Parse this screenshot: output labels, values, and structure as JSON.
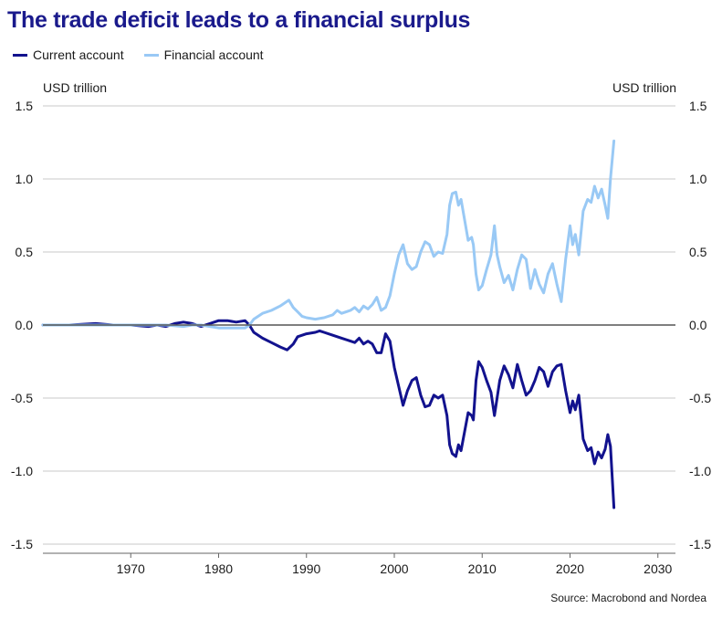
{
  "chart_data": {
    "type": "line",
    "title": "The trade deficit leads to a financial surplus",
    "ylabel_left": "USD trillion",
    "ylabel_right": "USD trillion",
    "source": "Source: Macrobond and Nordea",
    "xlim": [
      1960,
      2032
    ],
    "ylim": [
      -1.5,
      1.5
    ],
    "x_ticks": [
      1970,
      1980,
      1990,
      2000,
      2010,
      2020,
      2030
    ],
    "y_ticks": [
      1.5,
      1.0,
      0.5,
      0.0,
      -0.5,
      -1.0,
      -1.5
    ],
    "y_tick_labels": [
      "1.5",
      "1.0",
      "0.5",
      "0.0",
      "-0.5",
      "-1.0",
      "-1.5"
    ],
    "grid": "horizontal",
    "legend_placement": "top-left",
    "series": [
      {
        "name": "Current account",
        "color": "#12128e",
        "points": [
          [
            1960.0,
            0.0
          ],
          [
            1963.0,
            0.0
          ],
          [
            1966.0,
            0.01
          ],
          [
            1968.0,
            0.0
          ],
          [
            1970.0,
            0.0
          ],
          [
            1972.0,
            -0.01
          ],
          [
            1973.0,
            0.0
          ],
          [
            1974.0,
            -0.01
          ],
          [
            1975.0,
            0.01
          ],
          [
            1976.0,
            0.02
          ],
          [
            1977.0,
            0.01
          ],
          [
            1978.0,
            -0.01
          ],
          [
            1979.0,
            0.01
          ],
          [
            1980.0,
            0.03
          ],
          [
            1981.0,
            0.03
          ],
          [
            1982.0,
            0.02
          ],
          [
            1983.0,
            0.03
          ],
          [
            1983.5,
            0.0
          ],
          [
            1984.0,
            -0.05
          ],
          [
            1985.0,
            -0.09
          ],
          [
            1986.0,
            -0.12
          ],
          [
            1987.0,
            -0.15
          ],
          [
            1987.8,
            -0.17
          ],
          [
            1988.5,
            -0.13
          ],
          [
            1989.0,
            -0.08
          ],
          [
            1990.0,
            -0.06
          ],
          [
            1991.0,
            -0.05
          ],
          [
            1991.5,
            -0.04
          ],
          [
            1992.0,
            -0.05
          ],
          [
            1993.0,
            -0.07
          ],
          [
            1994.0,
            -0.09
          ],
          [
            1995.0,
            -0.11
          ],
          [
            1995.5,
            -0.12
          ],
          [
            1996.0,
            -0.09
          ],
          [
            1996.5,
            -0.13
          ],
          [
            1997.0,
            -0.11
          ],
          [
            1997.5,
            -0.13
          ],
          [
            1998.0,
            -0.19
          ],
          [
            1998.5,
            -0.19
          ],
          [
            1999.0,
            -0.06
          ],
          [
            1999.5,
            -0.11
          ],
          [
            2000.0,
            -0.29
          ],
          [
            2000.5,
            -0.42
          ],
          [
            2001.0,
            -0.55
          ],
          [
            2001.5,
            -0.45
          ],
          [
            2002.0,
            -0.38
          ],
          [
            2002.5,
            -0.36
          ],
          [
            2003.0,
            -0.48
          ],
          [
            2003.5,
            -0.56
          ],
          [
            2004.0,
            -0.55
          ],
          [
            2004.5,
            -0.48
          ],
          [
            2005.0,
            -0.5
          ],
          [
            2005.5,
            -0.48
          ],
          [
            2006.0,
            -0.62
          ],
          [
            2006.3,
            -0.82
          ],
          [
            2006.6,
            -0.88
          ],
          [
            2007.0,
            -0.9
          ],
          [
            2007.3,
            -0.82
          ],
          [
            2007.6,
            -0.86
          ],
          [
            2008.0,
            -0.73
          ],
          [
            2008.4,
            -0.6
          ],
          [
            2008.8,
            -0.62
          ],
          [
            2009.0,
            -0.65
          ],
          [
            2009.3,
            -0.38
          ],
          [
            2009.6,
            -0.25
          ],
          [
            2010.0,
            -0.29
          ],
          [
            2010.5,
            -0.38
          ],
          [
            2011.0,
            -0.46
          ],
          [
            2011.4,
            -0.62
          ],
          [
            2011.7,
            -0.5
          ],
          [
            2012.0,
            -0.38
          ],
          [
            2012.5,
            -0.28
          ],
          [
            2013.0,
            -0.34
          ],
          [
            2013.5,
            -0.43
          ],
          [
            2014.0,
            -0.27
          ],
          [
            2014.5,
            -0.38
          ],
          [
            2015.0,
            -0.48
          ],
          [
            2015.5,
            -0.45
          ],
          [
            2016.0,
            -0.38
          ],
          [
            2016.5,
            -0.29
          ],
          [
            2017.0,
            -0.32
          ],
          [
            2017.5,
            -0.42
          ],
          [
            2018.0,
            -0.32
          ],
          [
            2018.5,
            -0.28
          ],
          [
            2019.0,
            -0.27
          ],
          [
            2019.5,
            -0.45
          ],
          [
            2020.0,
            -0.6
          ],
          [
            2020.3,
            -0.52
          ],
          [
            2020.6,
            -0.58
          ],
          [
            2021.0,
            -0.48
          ],
          [
            2021.5,
            -0.78
          ],
          [
            2022.0,
            -0.86
          ],
          [
            2022.4,
            -0.84
          ],
          [
            2022.8,
            -0.95
          ],
          [
            2023.2,
            -0.87
          ],
          [
            2023.6,
            -0.91
          ],
          [
            2024.0,
            -0.85
          ],
          [
            2024.3,
            -0.75
          ],
          [
            2024.6,
            -0.83
          ],
          [
            2025.0,
            -1.25
          ]
        ]
      },
      {
        "name": "Financial account",
        "color": "#99c9f5",
        "points": [
          [
            1960.0,
            0.0
          ],
          [
            1963.0,
            0.0
          ],
          [
            1966.0,
            0.0
          ],
          [
            1968.0,
            0.0
          ],
          [
            1970.0,
            0.0
          ],
          [
            1972.0,
            0.0
          ],
          [
            1974.0,
            0.0
          ],
          [
            1976.0,
            -0.01
          ],
          [
            1977.0,
            0.0
          ],
          [
            1978.0,
            0.0
          ],
          [
            1979.0,
            -0.01
          ],
          [
            1980.0,
            -0.02
          ],
          [
            1981.0,
            -0.02
          ],
          [
            1982.0,
            -0.02
          ],
          [
            1983.0,
            -0.02
          ],
          [
            1983.5,
            0.0
          ],
          [
            1984.0,
            0.04
          ],
          [
            1985.0,
            0.08
          ],
          [
            1986.0,
            0.1
          ],
          [
            1987.0,
            0.13
          ],
          [
            1988.0,
            0.17
          ],
          [
            1988.5,
            0.12
          ],
          [
            1989.0,
            0.09
          ],
          [
            1989.5,
            0.06
          ],
          [
            1990.0,
            0.05
          ],
          [
            1991.0,
            0.04
          ],
          [
            1992.0,
            0.05
          ],
          [
            1993.0,
            0.07
          ],
          [
            1993.5,
            0.1
          ],
          [
            1994.0,
            0.08
          ],
          [
            1995.0,
            0.1
          ],
          [
            1995.5,
            0.12
          ],
          [
            1996.0,
            0.09
          ],
          [
            1996.5,
            0.13
          ],
          [
            1997.0,
            0.11
          ],
          [
            1997.5,
            0.14
          ],
          [
            1998.0,
            0.19
          ],
          [
            1998.5,
            0.1
          ],
          [
            1999.0,
            0.12
          ],
          [
            1999.5,
            0.2
          ],
          [
            2000.0,
            0.35
          ],
          [
            2000.5,
            0.48
          ],
          [
            2001.0,
            0.55
          ],
          [
            2001.5,
            0.42
          ],
          [
            2002.0,
            0.38
          ],
          [
            2002.5,
            0.4
          ],
          [
            2003.0,
            0.5
          ],
          [
            2003.5,
            0.57
          ],
          [
            2004.0,
            0.55
          ],
          [
            2004.5,
            0.47
          ],
          [
            2005.0,
            0.5
          ],
          [
            2005.5,
            0.49
          ],
          [
            2006.0,
            0.62
          ],
          [
            2006.3,
            0.82
          ],
          [
            2006.6,
            0.9
          ],
          [
            2007.0,
            0.91
          ],
          [
            2007.3,
            0.82
          ],
          [
            2007.6,
            0.86
          ],
          [
            2008.0,
            0.72
          ],
          [
            2008.4,
            0.58
          ],
          [
            2008.8,
            0.6
          ],
          [
            2009.0,
            0.55
          ],
          [
            2009.3,
            0.35
          ],
          [
            2009.6,
            0.24
          ],
          [
            2010.0,
            0.27
          ],
          [
            2010.5,
            0.38
          ],
          [
            2011.0,
            0.48
          ],
          [
            2011.4,
            0.68
          ],
          [
            2011.7,
            0.48
          ],
          [
            2012.0,
            0.4
          ],
          [
            2012.5,
            0.29
          ],
          [
            2013.0,
            0.34
          ],
          [
            2013.5,
            0.24
          ],
          [
            2014.0,
            0.38
          ],
          [
            2014.5,
            0.48
          ],
          [
            2015.0,
            0.45
          ],
          [
            2015.5,
            0.25
          ],
          [
            2016.0,
            0.38
          ],
          [
            2016.5,
            0.28
          ],
          [
            2017.0,
            0.22
          ],
          [
            2017.5,
            0.35
          ],
          [
            2018.0,
            0.42
          ],
          [
            2018.5,
            0.28
          ],
          [
            2019.0,
            0.16
          ],
          [
            2019.5,
            0.45
          ],
          [
            2020.0,
            0.68
          ],
          [
            2020.3,
            0.55
          ],
          [
            2020.6,
            0.62
          ],
          [
            2021.0,
            0.48
          ],
          [
            2021.5,
            0.78
          ],
          [
            2022.0,
            0.86
          ],
          [
            2022.4,
            0.84
          ],
          [
            2022.8,
            0.95
          ],
          [
            2023.2,
            0.87
          ],
          [
            2023.6,
            0.93
          ],
          [
            2024.0,
            0.82
          ],
          [
            2024.3,
            0.73
          ],
          [
            2024.6,
            1.0
          ],
          [
            2025.0,
            1.26
          ]
        ]
      }
    ]
  }
}
